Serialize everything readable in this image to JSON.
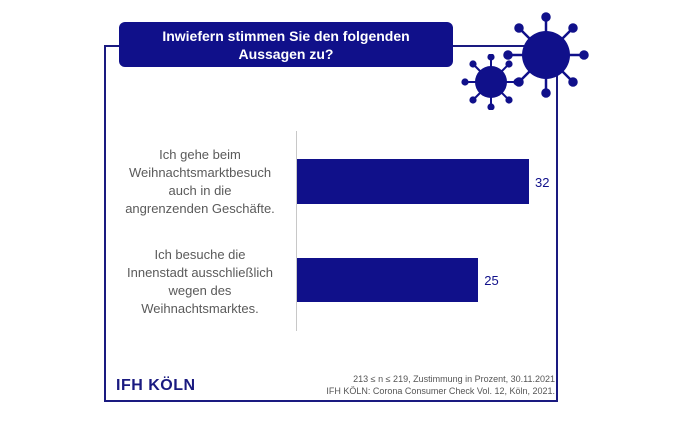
{
  "title_line1": "Inwiefern stimmen Sie den folgenden",
  "title_line2": "Aussagen zu?",
  "chart_data": {
    "type": "bar",
    "orientation": "horizontal",
    "title": "Inwiefern stimmen Sie den folgenden Aussagen zu?",
    "categories": [
      "Ich gehe beim\nWeihnachtsmarktbesuch\nauch in die\nangrenzenden Geschäfte.",
      "Ich besuche die\nInnenstadt ausschließlich\nwegen des\nWeihnachtsmarktes."
    ],
    "values": [
      32,
      25
    ],
    "labels": [
      "32",
      "25"
    ],
    "unit": "Prozent",
    "xlim": [
      0,
      40
    ],
    "color": "#10108a"
  },
  "logo": "IFH KÖLN",
  "footnote_line1": "213 ≤ n ≤ 219, Zustimmung in Prozent, 30.11.2021",
  "footnote_line2": "IFH KÖLN: Corona Consumer Check Vol. 12, Köln, 2021.",
  "icons": [
    "virus-icon",
    "virus-icon"
  ]
}
